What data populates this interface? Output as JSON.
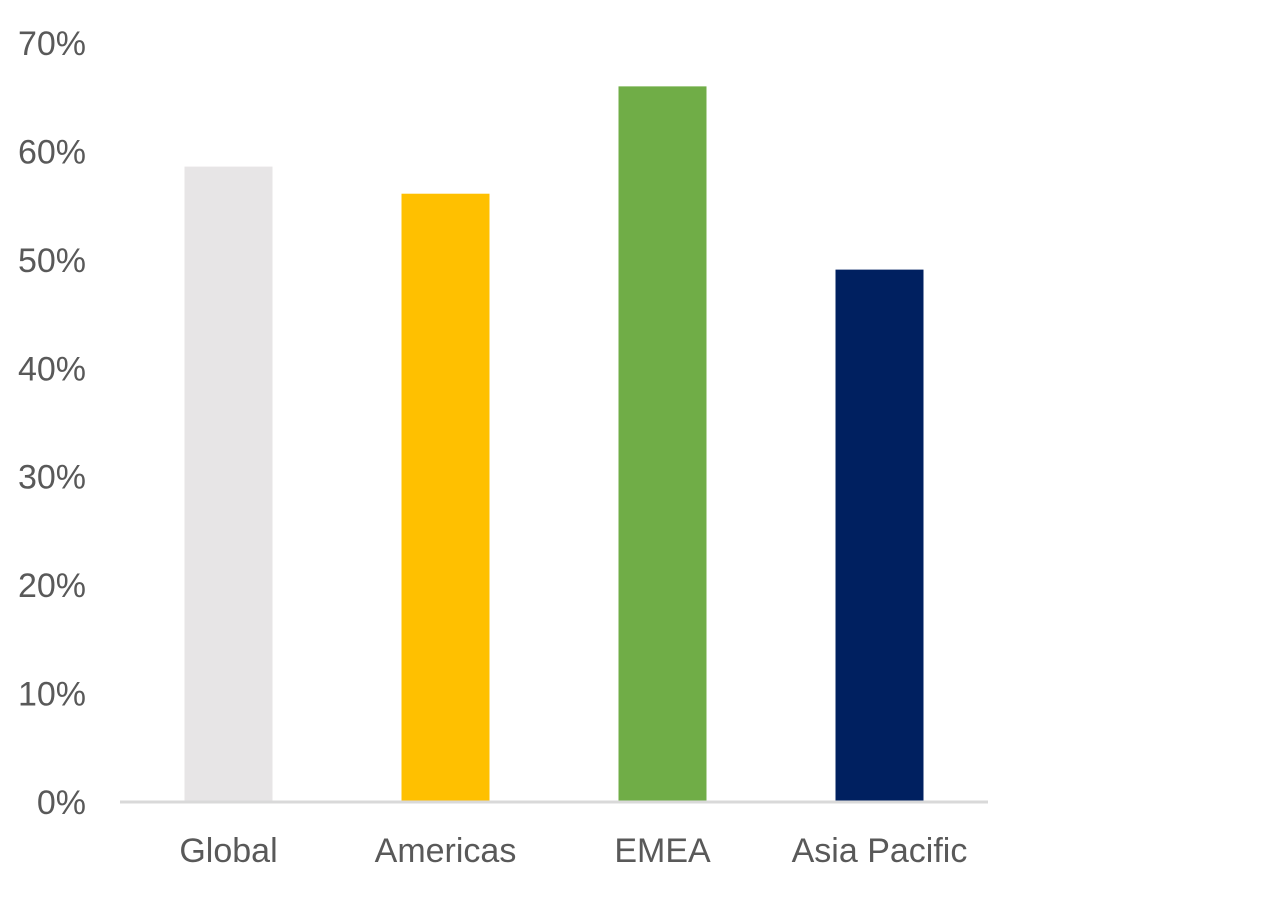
{
  "chart_data": {
    "type": "bar",
    "categories": [
      "Global",
      "Americas",
      "EMEA",
      "Asia Pacific"
    ],
    "values": [
      58.6,
      56.1,
      66.0,
      49.1
    ],
    "colors": [
      "#e7e5e6",
      "#ffc000",
      "#70ad47",
      "#002060"
    ],
    "ylim": [
      0,
      70
    ],
    "yticks": [
      {
        "value": 0,
        "label": "0%"
      },
      {
        "value": 10,
        "label": "10%"
      },
      {
        "value": 20,
        "label": "20%"
      },
      {
        "value": 30,
        "label": "30%"
      },
      {
        "value": 40,
        "label": "40%"
      },
      {
        "value": 50,
        "label": "50%"
      },
      {
        "value": 60,
        "label": "60%"
      },
      {
        "value": 70,
        "label": "70%"
      }
    ],
    "grid": false,
    "legend": "none"
  }
}
